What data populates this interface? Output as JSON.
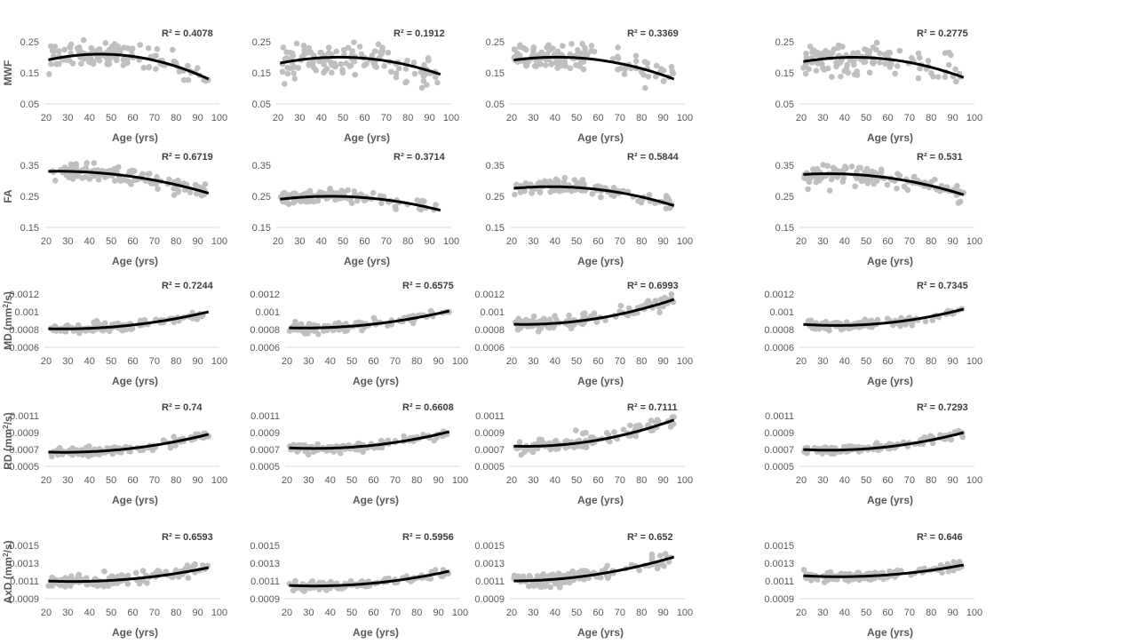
{
  "figure_title": "",
  "colors": {
    "points": "#bfbfbf",
    "trendline": "#000000",
    "axis": "#d9d9d9",
    "text": "#595959"
  },
  "chart_data": {
    "type": "scatter",
    "grid": false,
    "xlabel": "Age (yrs)",
    "x_ticks": [
      "20",
      "30",
      "40",
      "50",
      "60",
      "70",
      "80",
      "90",
      "100"
    ],
    "xlim": [
      20,
      100
    ],
    "rows": [
      {
        "metric": "MWF",
        "ylabel": "MWF",
        "ylabel_sup": "",
        "yticks": [
          "0.05",
          "0.15",
          "0.25"
        ],
        "ylim": [
          0.05,
          0.25
        ],
        "panels": [
          {
            "r2": "R² = 0.4078",
            "fit": {
              "y20": 0.19,
              "y45": 0.21,
              "y95": 0.13
            },
            "spread": 0.025
          },
          {
            "r2": "R² = 0.1912",
            "fit": {
              "y20": 0.18,
              "y45": 0.2,
              "y95": 0.145
            },
            "spread": 0.03
          },
          {
            "r2": "R² = 0.3369",
            "fit": {
              "y20": 0.19,
              "y45": 0.2,
              "y95": 0.13
            },
            "spread": 0.028
          },
          {
            "r2": "R² = 0.2775",
            "fit": {
              "y20": 0.185,
              "y45": 0.2,
              "y95": 0.135
            },
            "spread": 0.03
          }
        ]
      },
      {
        "metric": "FA",
        "ylabel": "FA",
        "ylabel_sup": "",
        "yticks": [
          "0.15",
          "0.25",
          "0.35"
        ],
        "ylim": [
          0.15,
          0.35
        ],
        "panels": [
          {
            "r2": "R² = 0.6719",
            "fit": {
              "y20": 0.33,
              "y45": 0.325,
              "y95": 0.26
            },
            "spread": 0.015
          },
          {
            "r2": "R² = 0.3714",
            "fit": {
              "y20": 0.24,
              "y45": 0.25,
              "y95": 0.205
            },
            "spread": 0.013
          },
          {
            "r2": "R² = 0.5844",
            "fit": {
              "y20": 0.275,
              "y45": 0.28,
              "y95": 0.22
            },
            "spread": 0.014
          },
          {
            "r2": "R² = 0.531",
            "fit": {
              "y20": 0.32,
              "y45": 0.32,
              "y95": 0.255
            },
            "spread": 0.018
          }
        ]
      },
      {
        "metric": "MD",
        "ylabel": "MD (mm",
        "ylabel_sup": "2",
        "ylabel_after": "/s)",
        "yticks": [
          "0.0006",
          "0.0008",
          "0.001",
          "0.0012"
        ],
        "ylim": [
          0.0006,
          0.0012
        ],
        "panels": [
          {
            "r2": "R² = 0.7244",
            "fit": {
              "y20": 0.00081,
              "y45": 0.00082,
              "y95": 0.001
            },
            "spread": 3e-05
          },
          {
            "r2": "R² = 0.6575",
            "fit": {
              "y20": 0.00082,
              "y45": 0.00083,
              "y95": 0.00101
            },
            "spread": 3e-05
          },
          {
            "r2": "R² = 0.6993",
            "fit": {
              "y20": 0.00086,
              "y45": 0.00088,
              "y95": 0.00114
            },
            "spread": 5e-05
          },
          {
            "r2": "R² = 0.7345",
            "fit": {
              "y20": 0.00086,
              "y45": 0.00085,
              "y95": 0.00103
            },
            "spread": 3e-05
          }
        ]
      },
      {
        "metric": "RD",
        "ylabel": "RD (mm",
        "ylabel_sup": "2",
        "ylabel_after": "/s)",
        "yticks": [
          "0.0005",
          "0.0007",
          "0.0009",
          "0.0011"
        ],
        "ylim": [
          0.0005,
          0.0011
        ],
        "panels": [
          {
            "r2": "R² = 0.74",
            "fit": {
              "y20": 0.00067,
              "y45": 0.00068,
              "y95": 0.00088
            },
            "spread": 3e-05
          },
          {
            "r2": "R² = 0.6608",
            "fit": {
              "y20": 0.00072,
              "y45": 0.00072,
              "y95": 0.00091
            },
            "spread": 3e-05
          },
          {
            "r2": "R² = 0.7111",
            "fit": {
              "y20": 0.00074,
              "y45": 0.00076,
              "y95": 0.00105
            },
            "spread": 5e-05
          },
          {
            "r2": "R² = 0.7293",
            "fit": {
              "y20": 0.0007,
              "y45": 0.0007,
              "y95": 0.0009
            },
            "spread": 3e-05
          }
        ]
      },
      {
        "metric": "AxD",
        "ylabel": "AxD (mm",
        "ylabel_sup": "2",
        "ylabel_after": "/s)",
        "yticks": [
          "0.0009",
          "0.0011",
          "0.0013",
          "0.0015"
        ],
        "ylim": [
          0.0009,
          0.0015
        ],
        "panels": [
          {
            "r2": "R² = 0.6593",
            "fit": {
              "y20": 0.0011,
              "y45": 0.0011,
              "y95": 0.00125
            },
            "spread": 4e-05
          },
          {
            "r2": "R² = 0.5956",
            "fit": {
              "y20": 0.00105,
              "y45": 0.00105,
              "y95": 0.00121
            },
            "spread": 3e-05
          },
          {
            "r2": "R² = 0.652",
            "fit": {
              "y20": 0.0011,
              "y45": 0.00113,
              "y95": 0.00137
            },
            "spread": 5e-05
          },
          {
            "r2": "R² = 0.646",
            "fit": {
              "y20": 0.00116,
              "y45": 0.00115,
              "y95": 0.00128
            },
            "spread": 3e-05
          }
        ]
      }
    ]
  }
}
